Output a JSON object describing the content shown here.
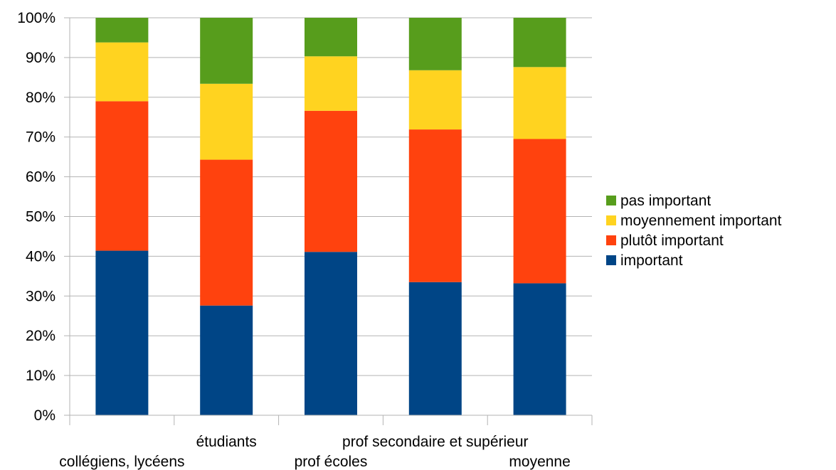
{
  "chart_data": {
    "type": "bar",
    "stacked": true,
    "percent": true,
    "categories": [
      "collégiens, lycéens",
      "étudiants",
      "prof écoles",
      "prof secondaire et supérieur",
      "moyenne"
    ],
    "series": [
      {
        "name": "important",
        "color": "#004586",
        "values": [
          41.4,
          27.6,
          41.1,
          33.5,
          33.2
        ]
      },
      {
        "name": "plutôt important",
        "color": "#ff420e",
        "values": [
          37.6,
          36.7,
          35.5,
          38.4,
          36.3
        ]
      },
      {
        "name": "moyennement important",
        "color": "#ffd320",
        "values": [
          14.8,
          19.1,
          13.7,
          14.9,
          18.1
        ]
      },
      {
        "name": "pas important",
        "color": "#579d1c",
        "values": [
          6.2,
          16.6,
          9.7,
          13.2,
          12.4
        ]
      }
    ],
    "ylim": [
      0,
      100
    ],
    "yticks": [
      "0%",
      "10%",
      "20%",
      "30%",
      "40%",
      "50%",
      "60%",
      "70%",
      "80%",
      "90%",
      "100%"
    ],
    "grid": true,
    "legend_position": "right",
    "title": "",
    "xlabel": "",
    "ylabel": ""
  }
}
